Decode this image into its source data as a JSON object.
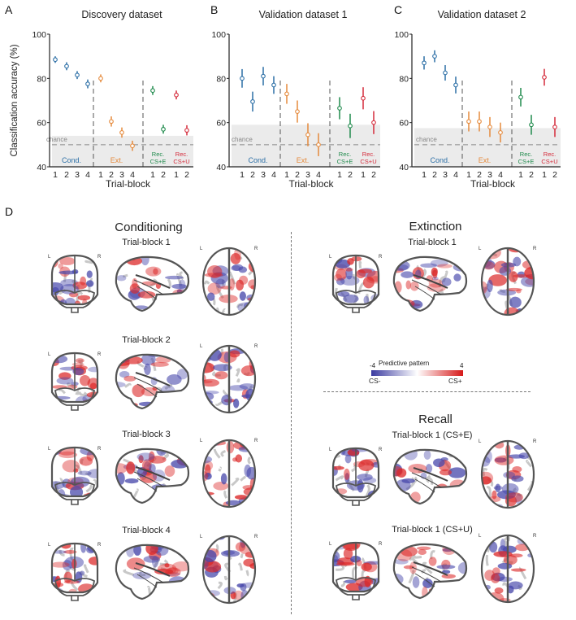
{
  "panels": {
    "A": {
      "letter": "A",
      "title": "Discovery dataset"
    },
    "B": {
      "letter": "B",
      "title": "Validation dataset 1"
    },
    "C": {
      "letter": "C",
      "title": "Validation dataset 2"
    },
    "D": {
      "letter": "D"
    }
  },
  "colors": {
    "cond": "#2c6fa6",
    "ext": "#e58a3c",
    "rec_cse": "#1f8a4c",
    "rec_csu": "#d42a3a",
    "chance_band": "#ebebeb",
    "chance_line": "#888888"
  },
  "chart_data": [
    {
      "type": "scatter",
      "title": "Discovery dataset",
      "xlabel": "Trial-block",
      "ylabel": "Classification accuracy (%)",
      "ylim": [
        40,
        100
      ],
      "yticks": [
        40,
        60,
        80,
        100
      ],
      "chance_label": "chance",
      "chance_level": 50,
      "chance_band_upper": 54,
      "groups": [
        {
          "name": "Cond.",
          "color_key": "cond",
          "x_labels": [
            "1",
            "2",
            "3",
            "4"
          ],
          "values": [
            88.5,
            85.5,
            81.5,
            77.5
          ],
          "err": [
            1.5,
            1.8,
            1.8,
            2.0
          ]
        },
        {
          "name": "Ext.",
          "color_key": "ext",
          "x_labels": [
            "1",
            "2",
            "3",
            "4"
          ],
          "values": [
            80,
            60.5,
            55.5,
            49.5
          ],
          "err": [
            1.8,
            2.3,
            2.3,
            2.3
          ]
        },
        {
          "name": "Rec.\nCS+E",
          "label_line1": "Rec.",
          "label_line2": "CS+E",
          "color_key": "rec_cse",
          "x_labels": [
            "1",
            "2"
          ],
          "values": [
            74.5,
            57
          ],
          "err": [
            2.0,
            2.0
          ]
        },
        {
          "name": "Rec.\nCS+U",
          "label_line1": "Rec.",
          "label_line2": "CS+U",
          "color_key": "rec_csu",
          "x_labels": [
            "1",
            "2"
          ],
          "values": [
            72.5,
            56.5
          ],
          "err": [
            2.0,
            2.3
          ]
        }
      ]
    },
    {
      "type": "scatter",
      "title": "Validation dataset 1",
      "xlabel": "Trial-block",
      "ylabel": "",
      "ylim": [
        40,
        100
      ],
      "yticks": [
        40,
        60,
        80,
        100
      ],
      "chance_label": "chance",
      "chance_level": 50,
      "chance_band_upper": 59,
      "groups": [
        {
          "name": "Cond.",
          "color_key": "cond",
          "x_labels": [
            "1",
            "2",
            "3",
            "4"
          ],
          "values": [
            80,
            69.5,
            81,
            77
          ],
          "err": [
            4.2,
            4.5,
            4.2,
            4.0
          ]
        },
        {
          "name": "Ext.",
          "color_key": "ext",
          "x_labels": [
            "1",
            "2",
            "3",
            "4"
          ],
          "values": [
            73,
            65,
            54.5,
            50
          ],
          "err": [
            4.5,
            5.0,
            5.2,
            5.2
          ]
        },
        {
          "name": "Rec.\nCS+E",
          "label_line1": "Rec.",
          "label_line2": "CS+E",
          "color_key": "rec_cse",
          "x_labels": [
            "1",
            "2"
          ],
          "values": [
            66.5,
            58.5
          ],
          "err": [
            5.0,
            5.5
          ]
        },
        {
          "name": "Rec.\nCS+U",
          "label_line1": "Rec.",
          "label_line2": "CS+U",
          "color_key": "rec_csu",
          "x_labels": [
            "1",
            "2"
          ],
          "values": [
            71,
            60
          ],
          "err": [
            5.0,
            5.2
          ]
        }
      ]
    },
    {
      "type": "scatter",
      "title": "Validation dataset 2",
      "xlabel": "Trial-block",
      "ylabel": "",
      "ylim": [
        40,
        100
      ],
      "yticks": [
        40,
        60,
        80,
        100
      ],
      "chance_label": "chance",
      "chance_level": 50,
      "chance_band_upper": 57.5,
      "groups": [
        {
          "name": "Cond.",
          "color_key": "cond",
          "x_labels": [
            "1",
            "2",
            "3",
            "4"
          ],
          "values": [
            87,
            90,
            82.5,
            77
          ],
          "err": [
            3.0,
            2.7,
            3.5,
            3.8
          ]
        },
        {
          "name": "Ext.",
          "color_key": "ext",
          "x_labels": [
            "1",
            "2",
            "3",
            "4"
          ],
          "values": [
            60.5,
            60.5,
            58,
            55.5
          ],
          "err": [
            4.5,
            4.5,
            4.5,
            4.5
          ]
        },
        {
          "name": "Rec.\nCS+E",
          "label_line1": "Rec.",
          "label_line2": "CS+E",
          "color_key": "rec_cse",
          "x_labels": [
            "1",
            "2"
          ],
          "values": [
            71.5,
            59
          ],
          "err": [
            4.2,
            4.5
          ]
        },
        {
          "name": "Rec.\nCS+U",
          "label_line1": "Rec.",
          "label_line2": "CS+U",
          "color_key": "rec_csu",
          "x_labels": [
            "1",
            "2"
          ],
          "values": [
            80.5,
            58
          ],
          "err": [
            3.8,
            4.5
          ]
        }
      ]
    }
  ],
  "brain_maps": {
    "conditioning": {
      "title": "Conditioning",
      "blocks": [
        "Trial-block 1",
        "Trial-block 2",
        "Trial-block 3",
        "Trial-block 4"
      ]
    },
    "extinction": {
      "title": "Extinction",
      "blocks": [
        "Trial-block 1"
      ]
    },
    "recall": {
      "title": "Recall",
      "blocks": [
        "Trial-block 1 (CS+E)",
        "Trial-block 1 (CS+U)"
      ]
    },
    "orientation": {
      "left": "L",
      "right": "R"
    },
    "colorbar": {
      "title": "Predictive pattern",
      "min": "-4",
      "max": "4",
      "min_label": "CS-",
      "max_label": "CS+",
      "min_color": "#3b3ba0",
      "max_color": "#d61818"
    }
  }
}
